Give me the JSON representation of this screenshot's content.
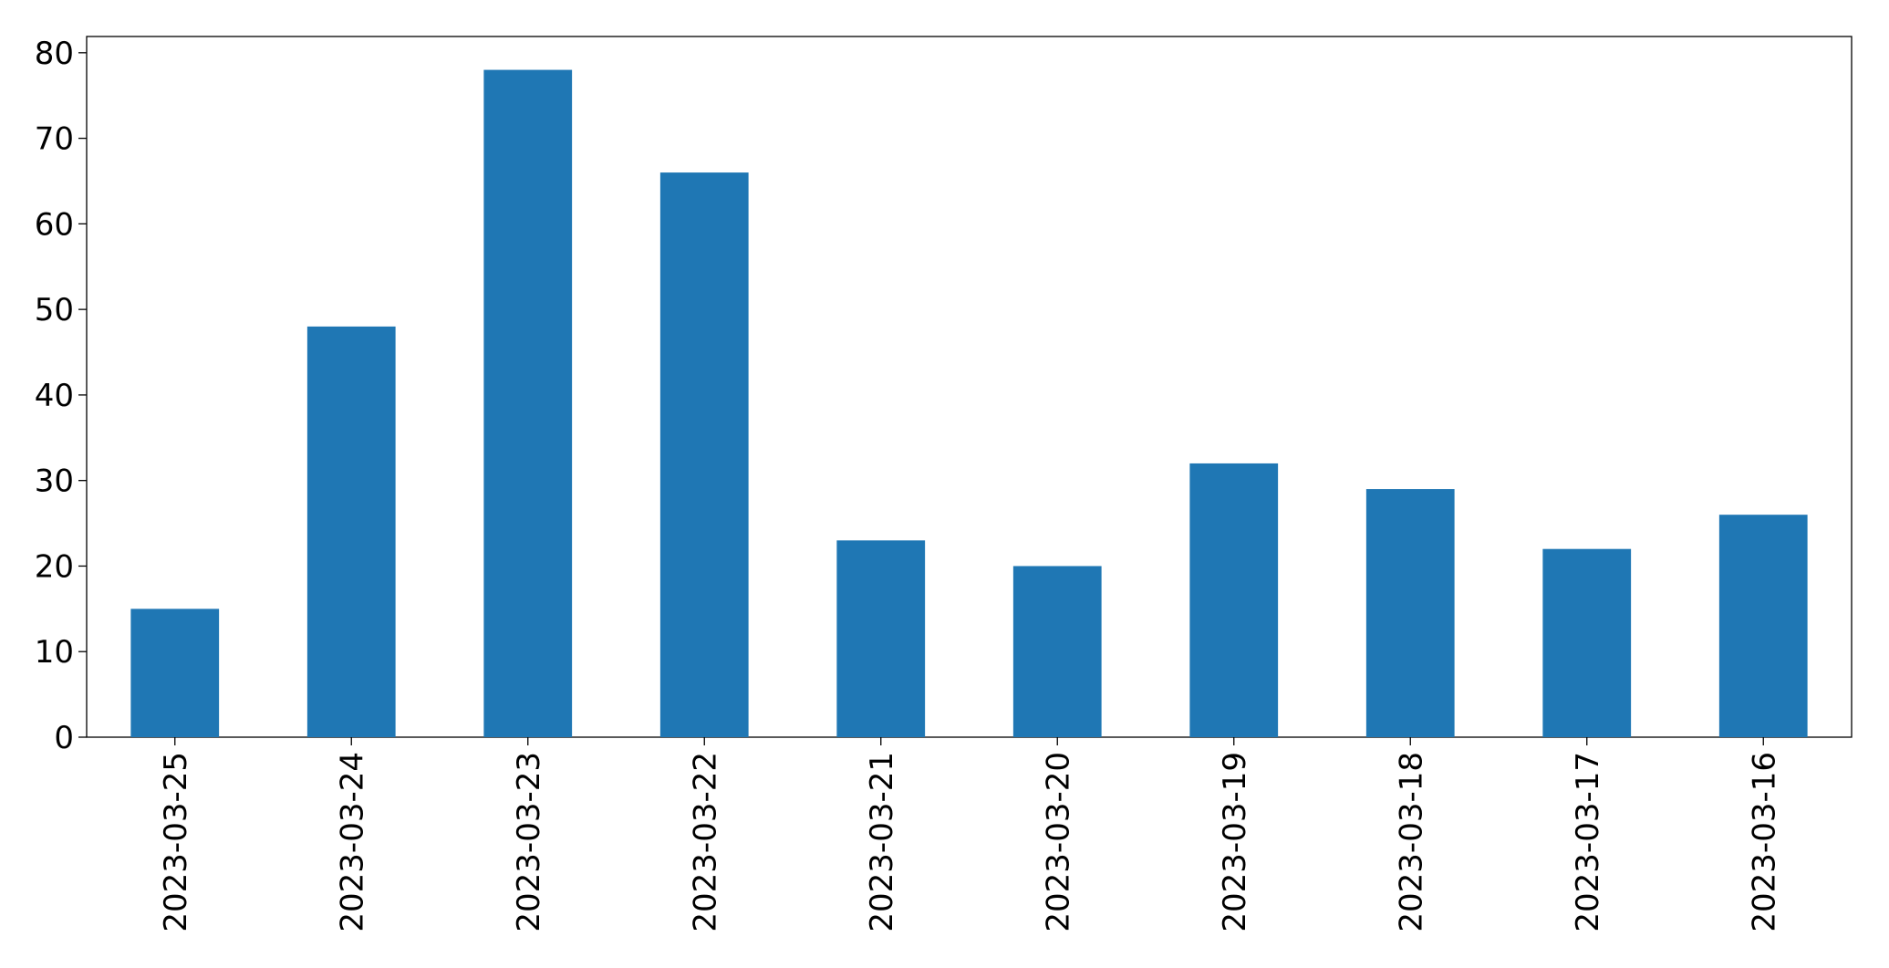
{
  "chart_data": {
    "type": "bar",
    "categories": [
      "2023-03-25",
      "2023-03-24",
      "2023-03-23",
      "2023-03-22",
      "2023-03-21",
      "2023-03-20",
      "2023-03-19",
      "2023-03-18",
      "2023-03-17",
      "2023-03-16"
    ],
    "values": [
      15,
      48,
      78,
      66,
      23,
      20,
      32,
      29,
      22,
      26
    ],
    "color": "#1f77b4",
    "ylim": [
      0,
      81.9
    ],
    "yticks": [
      0,
      10,
      20,
      30,
      40,
      50,
      60,
      70,
      80
    ],
    "grid": false
  }
}
